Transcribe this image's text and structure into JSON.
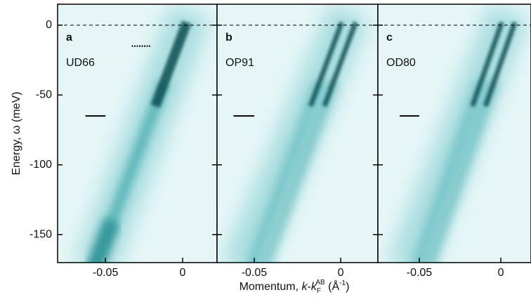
{
  "chart_data": [
    {
      "type": "image",
      "panel": "a",
      "label": "UD66",
      "xlim": [
        -0.081,
        0.0223
      ],
      "ylim": [
        -170,
        15
      ],
      "xticks": [
        -0.05,
        0
      ],
      "yticks": [
        0,
        -50,
        -100,
        -150
      ],
      "y_label": "Energy, ω (meV)",
      "reference_line": 0,
      "markers": [
        {
          "y": -65,
          "x": [
            -0.063,
            -0.05
          ]
        },
        {
          "y": -15,
          "x": [
            -0.033,
            -0.021
          ],
          "style": "dotted"
        }
      ]
    },
    {
      "type": "image",
      "panel": "b",
      "label": "OP91",
      "xlim": [
        -0.0715,
        0.0215
      ],
      "ylim": [
        -170,
        15
      ],
      "xticks": [
        -0.05,
        0
      ],
      "yticks": [
        0,
        -50,
        -100,
        -150
      ],
      "reference_line": 0,
      "markers": [
        {
          "y": -65,
          "x": [
            -0.062,
            -0.05
          ]
        }
      ]
    },
    {
      "type": "image",
      "panel": "c",
      "label": "OD80",
      "xlim": [
        -0.0754,
        0.0185
      ],
      "ylim": [
        -170,
        15
      ],
      "xticks": [
        -0.05,
        0
      ],
      "yticks": [
        0,
        -50,
        -100,
        -150
      ],
      "reference_line": 0,
      "markers": [
        {
          "y": -65,
          "x": [
            -0.062,
            -0.05
          ]
        }
      ]
    }
  ],
  "x_label": {
    "prefix": "Momentum, ",
    "k1": "k",
    "dash": "-",
    "k2": "k",
    "sub": "F",
    "sup": "AB",
    "unit": " (Å",
    "unit_sup": "-1",
    "close": ")"
  }
}
